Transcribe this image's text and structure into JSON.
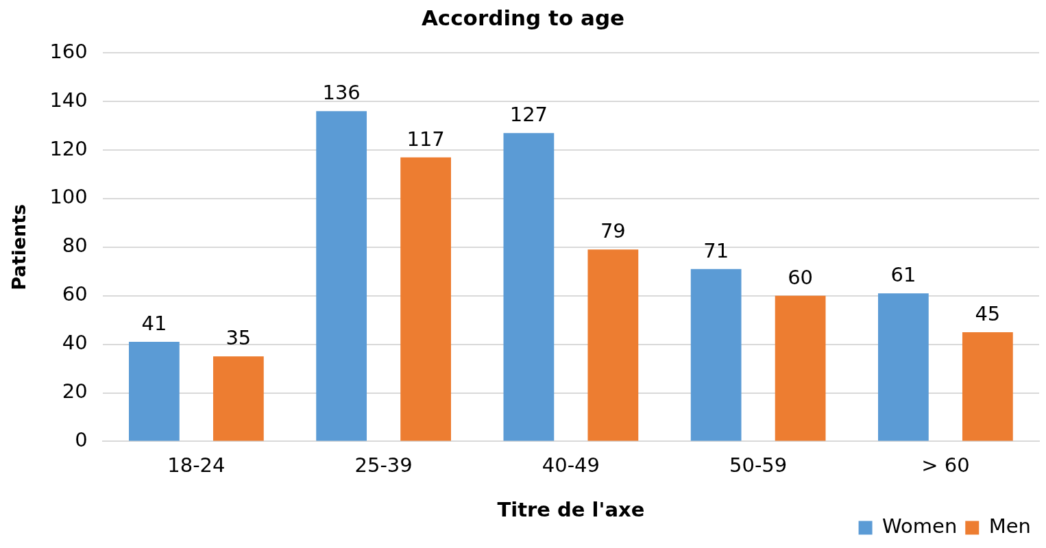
{
  "chart_data": {
    "type": "bar",
    "title": "According to age",
    "xlabel": "Titre de l'axe",
    "ylabel": "Patients",
    "categories": [
      "18-24",
      "25-39",
      "40-49",
      "50-59",
      "> 60"
    ],
    "series": [
      {
        "name": "Women",
        "color": "#5b9bd5",
        "values": [
          41,
          136,
          127,
          71,
          61
        ]
      },
      {
        "name": "Men",
        "color": "#ed7d31",
        "values": [
          35,
          117,
          79,
          60,
          45
        ]
      }
    ],
    "ylim": [
      0,
      160
    ],
    "yticks": [
      0,
      20,
      40,
      60,
      80,
      100,
      120,
      140,
      160
    ],
    "grid": "y",
    "legend": "bottom right",
    "data_labels": true
  }
}
